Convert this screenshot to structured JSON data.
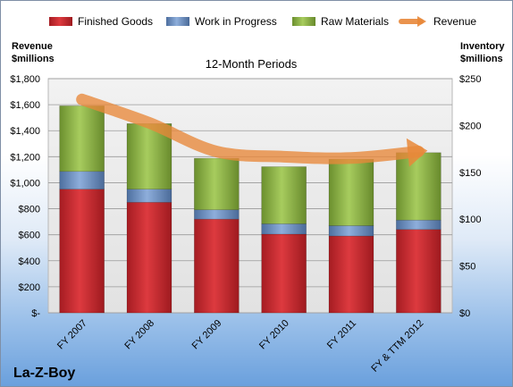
{
  "chart_data": {
    "type": "bar",
    "subtitle": "12-Month Periods",
    "company": "La-Z-Boy",
    "left_axis_title": [
      "Revenue",
      "$millions"
    ],
    "right_axis_title": [
      "Inventory",
      "$millions"
    ],
    "categories": [
      "FY 2007",
      "FY 2008",
      "FY 2009",
      "FY 2010",
      "FY 2011",
      "FY & TTM 2012"
    ],
    "left_ticks": [
      "$-",
      "$200",
      "$400",
      "$600",
      "$800",
      "$1,000",
      "$1,200",
      "$1,400",
      "$1,600",
      "$1,800"
    ],
    "right_ticks": [
      "$0",
      "$50",
      "$100",
      "$150",
      "$200",
      "$250"
    ],
    "ylim_left": [
      0,
      1800
    ],
    "ylim_right": [
      0,
      250
    ],
    "stacked": true,
    "series": [
      {
        "name": "Finished Goods",
        "color": "#c0282d",
        "axis": "right",
        "values": [
          132,
          118,
          100,
          84,
          82,
          89
        ]
      },
      {
        "name": "Work in Progress",
        "color": "#6b8fc4",
        "axis": "right",
        "values": [
          19,
          14,
          10,
          11,
          11,
          10
        ]
      },
      {
        "name": "Raw Materials",
        "color": "#8db446",
        "axis": "right",
        "values": [
          70,
          70,
          55,
          61,
          71,
          72
        ]
      },
      {
        "name": "Revenue",
        "color": "#e8883a",
        "axis": "left",
        "type": "line",
        "values": [
          1640,
          1460,
          1240,
          1200,
          1190,
          1240
        ]
      }
    ],
    "legend_position": "top",
    "grid": true
  }
}
